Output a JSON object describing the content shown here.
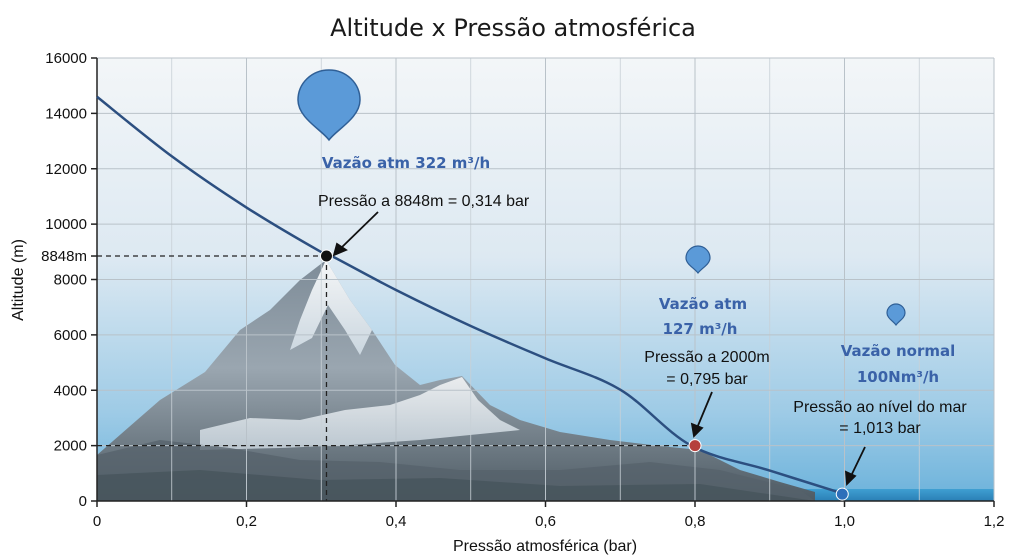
{
  "chart_data": {
    "type": "line",
    "title": "Altitude x Pressão atmosférica",
    "xlabel": "Pressão atmosférica (bar)",
    "ylabel": "Altitude (m)",
    "xlim": [
      0,
      1.2
    ],
    "ylim": [
      0,
      16000
    ],
    "x_ticks": [
      "0",
      "0,2",
      "0,4",
      "0,6",
      "0,8",
      "1,0",
      "1,2"
    ],
    "y_ticks": [
      "0",
      "2000",
      "4000",
      "6000",
      "8000",
      "10000",
      "12000",
      "14000",
      "16000"
    ],
    "special_y_tick": "8848m",
    "grid": true,
    "series": [
      {
        "x": [
          0.0,
          0.1,
          0.2,
          0.3,
          0.314,
          0.4,
          0.5,
          0.6,
          0.7,
          0.795,
          0.9,
          1.0
        ],
        "y": [
          14600,
          12450,
          10600,
          8990,
          8848,
          7620,
          6320,
          5150,
          4020,
          2000,
          1100,
          250
        ]
      }
    ],
    "points": [
      {
        "x": 0.307,
        "y": 8848,
        "color": "#111111",
        "label": "Pressão a 8848m = 0,314 bar"
      },
      {
        "x": 0.8,
        "y": 2000,
        "color": "#b5403c",
        "label": "Pressão a 2000m = 0,795 bar"
      },
      {
        "x": 0.997,
        "y": 250,
        "color": "#2d6fba",
        "label": "Pressão ao nível do mar = 1,013 bar"
      }
    ],
    "annotations": {
      "summit_label": "Pressão a 8848m = 0,314 bar",
      "mid_label_1": "Pressão a 2000m",
      "mid_label_2": "= 0,795 bar",
      "sea_label_1": "Pressão ao nível do mar",
      "sea_label_2": "= 1,013 bar"
    },
    "flow_labels": {
      "top": "Vazão atm 322 m³/h",
      "mid_1": "Vazão atm",
      "mid_2": "127 m³/h",
      "sea_1": "Vazão normal",
      "sea_2": "100Nm³/h"
    },
    "colors": {
      "curve": "#2c4f80",
      "bubble": "#5b9ad8",
      "flow_text": "#3a62a8"
    }
  }
}
